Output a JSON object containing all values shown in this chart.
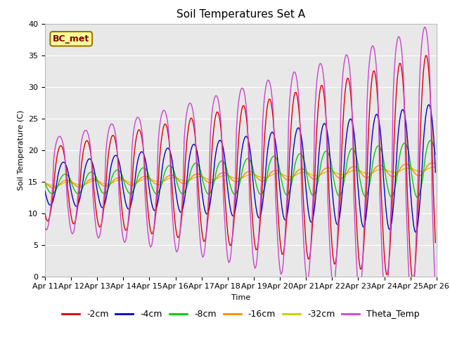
{
  "title": "Soil Temperatures Set A",
  "xlabel": "Time",
  "ylabel": "Soil Temperature (C)",
  "ylim": [
    0,
    40
  ],
  "colors": {
    "-2cm": "#dd0000",
    "-4cm": "#0000cc",
    "-8cm": "#00cc00",
    "-16cm": "#ff8800",
    "-32cm": "#cccc00",
    "Theta_Temp": "#cc44cc"
  },
  "annotation_text": "BC_met",
  "annotation_bgcolor": "#ffff99",
  "annotation_edgecolor": "#997700",
  "annotation_textcolor": "#880000",
  "background_color": "#e8e8e8",
  "grid_color": "#ffffff",
  "title_fontsize": 11,
  "axis_fontsize": 8,
  "legend_fontsize": 9
}
